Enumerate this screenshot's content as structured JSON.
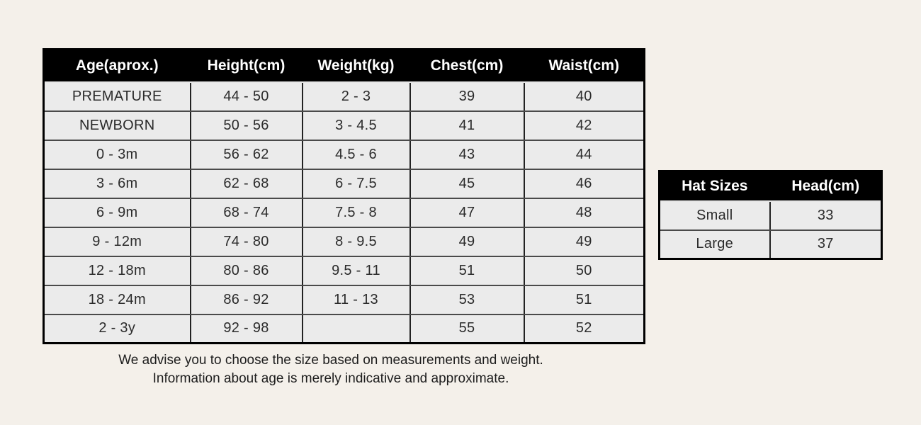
{
  "size_table": {
    "columns": [
      "Age(aprox.)",
      "Height(cm)",
      "Weight(kg)",
      "Chest(cm)",
      "Waist(cm)"
    ],
    "rows": [
      [
        "PREMATURE",
        "44 - 50",
        "2 - 3",
        "39",
        "40"
      ],
      [
        "NEWBORN",
        "50 - 56",
        "3 - 4.5",
        "41",
        "42"
      ],
      [
        "0 - 3m",
        "56 - 62",
        "4.5 - 6",
        "43",
        "44"
      ],
      [
        "3 - 6m",
        "62 - 68",
        "6 - 7.5",
        "45",
        "46"
      ],
      [
        "6 - 9m",
        "68 - 74",
        "7.5 - 8",
        "47",
        "48"
      ],
      [
        "9 - 12m",
        "74 - 80",
        "8 - 9.5",
        "49",
        "49"
      ],
      [
        "12 - 18m",
        "80 - 86",
        "9.5 - 11",
        "51",
        "50"
      ],
      [
        "18 - 24m",
        "86 - 92",
        "11 - 13",
        "53",
        "51"
      ],
      [
        "2 - 3y",
        "92 - 98",
        "",
        "55",
        "52"
      ]
    ]
  },
  "hat_table": {
    "columns": [
      "Hat Sizes",
      "Head(cm)"
    ],
    "rows": [
      [
        "Small",
        "33"
      ],
      [
        "Large",
        "37"
      ]
    ]
  },
  "footer": {
    "line1": "We advise you to choose the size based on measurements and weight.",
    "line2": "Information about age is merely indicative and approximate."
  },
  "colors": {
    "page_bg": "#f4f0ea",
    "header_bg": "#000000",
    "header_text": "#ffffff",
    "cell_bg": "#ebebeb",
    "border_outer": "#000000",
    "border_inner": "#4a4a4a",
    "text": "#2b2b2b"
  }
}
